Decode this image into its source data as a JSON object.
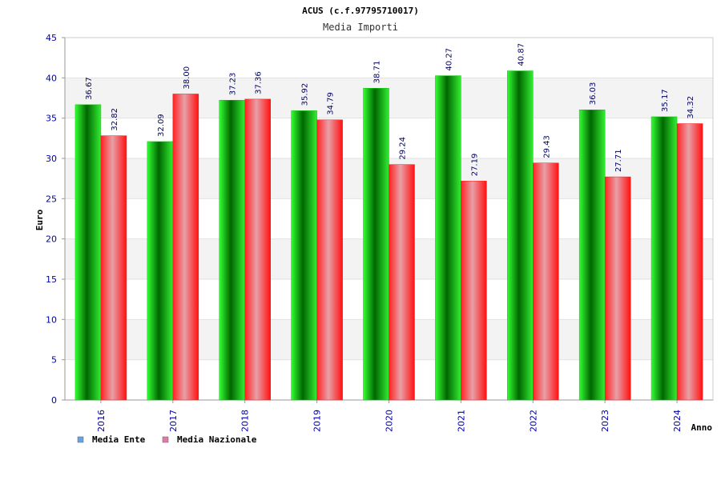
{
  "chart_data": {
    "type": "bar",
    "title": "ACUS (c.f.97795710017)",
    "subtitle": "Media Importi",
    "xlabel": "Anno",
    "ylabel": "Euro",
    "ylim": [
      0,
      45
    ],
    "yticks": [
      0,
      5,
      10,
      15,
      20,
      25,
      30,
      35,
      40,
      45
    ],
    "grid": true,
    "legend_position": "bottom-left",
    "categories": [
      "2016",
      "2017",
      "2018",
      "2019",
      "2020",
      "2021",
      "2022",
      "2023",
      "2024"
    ],
    "series": [
      {
        "name": "Media Ente",
        "color": "#00cc00",
        "legend_color": "#66a3e0",
        "values": [
          36.67,
          32.09,
          37.23,
          35.92,
          38.71,
          40.27,
          40.87,
          36.03,
          35.17
        ],
        "labels": [
          "36.67",
          "32.09",
          "37.23",
          "35.92",
          "38.71",
          "40.27",
          "40.87",
          "36.03",
          "35.17"
        ]
      },
      {
        "name": "Media Nazionale",
        "color": "#ff1a1a",
        "legend_color": "#e07aaa",
        "values": [
          32.82,
          38.0,
          37.36,
          34.79,
          29.24,
          27.19,
          29.43,
          27.71,
          34.32
        ],
        "labels": [
          "32.82",
          "38.00",
          "37.36",
          "34.79",
          "29.24",
          "27.19",
          "29.43",
          "27.71",
          "34.32"
        ]
      }
    ]
  },
  "colors": {
    "tick_label": "#0000aa",
    "data_label": "#000066",
    "band": "#f3f3f3"
  }
}
